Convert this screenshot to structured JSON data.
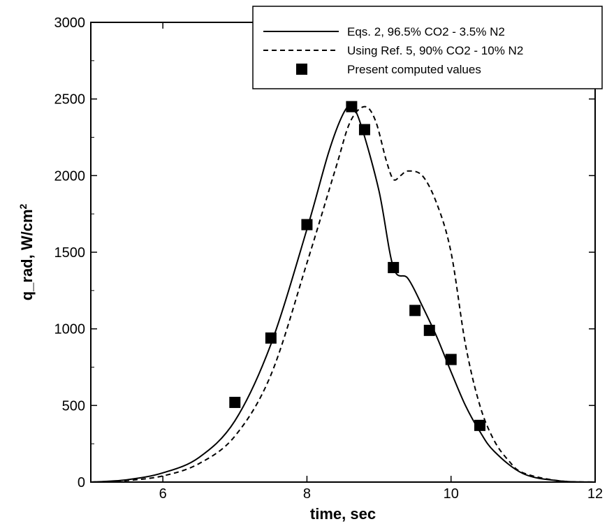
{
  "chart_data": {
    "type": "line",
    "title": "",
    "xlabel": "time, sec",
    "ylabel": "q_rad, W/cm",
    "ylabel_superscript": "2",
    "xlim": [
      5,
      12
    ],
    "ylim": [
      0,
      3000
    ],
    "xticks": [
      6,
      8,
      10,
      12
    ],
    "yticks": [
      0,
      500,
      1000,
      1500,
      2000,
      2500,
      3000
    ],
    "grid": false,
    "legend_position": "top-right",
    "series": [
      {
        "name": "Eqs. 2, 96.5% CO2 - 3.5% N2",
        "style": "solid",
        "color": "#000000",
        "x": [
          5.0,
          5.5,
          6.0,
          6.5,
          7.0,
          7.5,
          8.0,
          8.3,
          8.5,
          8.62,
          8.75,
          9.0,
          9.2,
          9.4,
          9.6,
          9.8,
          10.0,
          10.2,
          10.4,
          10.6,
          11.0,
          11.5,
          12.0
        ],
        "y": [
          0,
          15,
          60,
          160,
          400,
          900,
          1650,
          2150,
          2400,
          2450,
          2330,
          1900,
          1400,
          1330,
          1150,
          950,
          720,
          500,
          330,
          200,
          55,
          8,
          0
        ]
      },
      {
        "name": "Using Ref. 5, 90% CO2 - 10% N2",
        "style": "dashed",
        "color": "#000000",
        "x": [
          5.0,
          5.5,
          6.0,
          6.5,
          7.0,
          7.5,
          8.0,
          8.4,
          8.6,
          8.8,
          8.95,
          9.1,
          9.2,
          9.3,
          9.4,
          9.6,
          9.8,
          10.0,
          10.2,
          10.4,
          10.6,
          10.8,
          11.0,
          11.5,
          12.0
        ],
        "y": [
          0,
          10,
          40,
          120,
          300,
          700,
          1430,
          2050,
          2350,
          2450,
          2360,
          2100,
          1975,
          2000,
          2030,
          2000,
          1820,
          1500,
          900,
          500,
          270,
          140,
          60,
          8,
          0
        ]
      },
      {
        "name": "Present computed values",
        "style": "markers",
        "color": "#000000",
        "x": [
          7.0,
          7.5,
          8.0,
          8.62,
          8.8,
          9.2,
          9.5,
          9.7,
          10.0,
          10.4
        ],
        "y": [
          520,
          940,
          1680,
          2450,
          2300,
          1400,
          1120,
          990,
          800,
          370
        ]
      }
    ]
  }
}
